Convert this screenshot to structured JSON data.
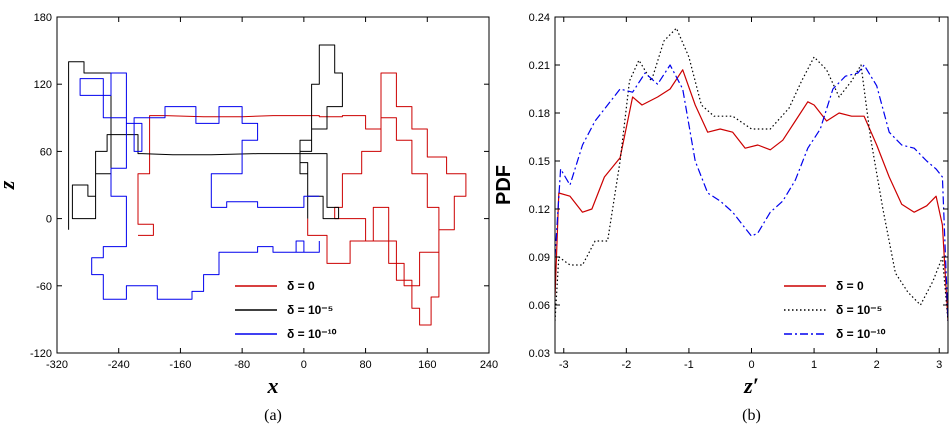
{
  "chart_data": [
    {
      "type": "line",
      "panel_label": "(a)",
      "xlabel": "x",
      "ylabel": "z",
      "xlim": [
        -320,
        240
      ],
      "ylim": [
        -120,
        180
      ],
      "xticks": [
        "-320",
        "-240",
        "-160",
        "-80",
        "0",
        "80",
        "160",
        "240"
      ],
      "yticks": [
        "-120",
        "-60",
        "0",
        "60",
        "120",
        "180"
      ],
      "grid": false,
      "legend_position": "bottom-right",
      "series": [
        {
          "name": "δ = 0",
          "color": "#cc0000",
          "style": "solid",
          "x": [
            5,
            5,
            30,
            30,
            60,
            60,
            90,
            90,
            110,
            110,
            130,
            130,
            150,
            150,
            175,
            175,
            195,
            195,
            210,
            210,
            185,
            185,
            160,
            160,
            140,
            140,
            120,
            120,
            100,
            100,
            75,
            75,
            50,
            50,
            40,
            40,
            80,
            80,
            120,
            120,
            140,
            140,
            150,
            150,
            165,
            165,
            175,
            175,
            160,
            160,
            140,
            140,
            120,
            120,
            100,
            100,
            80,
            80,
            50,
            50,
            20,
            20,
            -40,
            -80,
            -130,
            -180,
            -200,
            -200,
            -215,
            -215,
            -195,
            -195,
            -215
          ],
          "y": [
            0,
            -15,
            -15,
            -40,
            -40,
            -20,
            -20,
            10,
            10,
            -40,
            -40,
            -60,
            -60,
            -30,
            -30,
            -10,
            -10,
            20,
            20,
            40,
            40,
            55,
            55,
            80,
            80,
            100,
            100,
            130,
            130,
            60,
            60,
            40,
            40,
            10,
            10,
            0,
            0,
            -20,
            -20,
            -55,
            -55,
            -80,
            -80,
            -95,
            -95,
            -70,
            -70,
            10,
            10,
            40,
            40,
            70,
            70,
            90,
            90,
            80,
            80,
            92,
            92,
            91,
            91,
            92,
            92,
            91,
            91,
            92,
            92,
            40,
            40,
            -5,
            -5,
            -15,
            -15
          ]
        },
        {
          "name": "δ = 10⁻⁵",
          "color": "#000000",
          "style": "solid",
          "x": [
            5,
            5,
            -5,
            -5,
            10,
            10,
            20,
            20,
            40,
            40,
            50,
            50,
            30,
            30,
            10,
            10,
            -5,
            -5,
            5,
            5,
            25,
            25,
            45,
            45,
            30,
            30,
            -60,
            -120,
            -170,
            -210,
            -215,
            -215,
            -255,
            -255,
            -270,
            -270,
            -280,
            -280,
            -300,
            -300,
            -270,
            -270,
            -250,
            -250,
            -285,
            -285,
            -305,
            -305
          ],
          "y": [
            0,
            40,
            40,
            60,
            60,
            120,
            120,
            155,
            155,
            130,
            130,
            100,
            100,
            80,
            80,
            70,
            70,
            50,
            50,
            20,
            20,
            0,
            0,
            10,
            10,
            58,
            58,
            57,
            57,
            58,
            58,
            75,
            75,
            60,
            60,
            20,
            20,
            30,
            30,
            0,
            0,
            40,
            40,
            130,
            130,
            140,
            140,
            -10
          ]
        },
        {
          "name": "δ = 10⁻¹⁰",
          "color": "#0000ee",
          "style": "solid",
          "x": [
            20,
            20,
            -10,
            -10,
            0,
            0,
            -40,
            -40,
            -60,
            -60,
            -110,
            -110,
            -130,
            -130,
            -145,
            -145,
            -190,
            -190,
            -230,
            -230,
            -260,
            -260,
            -275,
            -275,
            -260,
            -260,
            -230,
            -230,
            -250,
            -250,
            -230,
            -230,
            -260,
            -260,
            -290,
            -290,
            -250,
            -250,
            -230,
            -230,
            -210,
            -210,
            -220,
            -220,
            -180,
            -180,
            -140,
            -140,
            -110,
            -110,
            -80,
            -80,
            -60,
            -60,
            -80,
            -80,
            -120,
            -120,
            -100,
            -100,
            -60,
            -60,
            0,
            0,
            20
          ],
          "y": [
            -20,
            -30,
            -30,
            -20,
            -20,
            -30,
            -30,
            -25,
            -25,
            -30,
            -30,
            -50,
            -50,
            -65,
            -65,
            -72,
            -72,
            -60,
            -60,
            -72,
            -72,
            -50,
            -50,
            -35,
            -35,
            -25,
            -25,
            20,
            20,
            45,
            45,
            90,
            90,
            125,
            125,
            110,
            110,
            130,
            130,
            85,
            85,
            60,
            60,
            90,
            90,
            100,
            100,
            85,
            85,
            100,
            100,
            85,
            85,
            70,
            70,
            40,
            40,
            10,
            10,
            15,
            15,
            10,
            10,
            20,
            20
          ]
        }
      ]
    },
    {
      "type": "line",
      "panel_label": "(b)",
      "xlabel": "z′",
      "ylabel": "PDF",
      "xlim": [
        -3.14,
        3.14
      ],
      "ylim": [
        0.03,
        0.24
      ],
      "xticks": [
        "-3",
        "-2",
        "-1",
        "0",
        "1",
        "2",
        "3"
      ],
      "yticks": [
        "0.03",
        "0.06",
        "0.09",
        "0.12",
        "0.15",
        "0.18",
        "0.21",
        "0.24"
      ],
      "grid": false,
      "legend_position": "bottom-right",
      "series": [
        {
          "name": "δ = 0",
          "color": "#cc0000",
          "style": "solid",
          "x": [
            -3.14,
            -3.08,
            -2.9,
            -2.7,
            -2.55,
            -2.35,
            -2.1,
            -1.9,
            -1.75,
            -1.5,
            -1.3,
            -1.1,
            -0.9,
            -0.7,
            -0.5,
            -0.3,
            -0.1,
            0.1,
            0.3,
            0.5,
            0.7,
            0.9,
            1.0,
            1.2,
            1.4,
            1.6,
            1.8,
            2.0,
            2.2,
            2.4,
            2.6,
            2.8,
            2.95,
            3.05,
            3.14
          ],
          "y": [
            0.065,
            0.13,
            0.128,
            0.118,
            0.12,
            0.14,
            0.152,
            0.19,
            0.185,
            0.19,
            0.195,
            0.207,
            0.185,
            0.168,
            0.17,
            0.168,
            0.158,
            0.16,
            0.157,
            0.163,
            0.175,
            0.187,
            0.185,
            0.175,
            0.18,
            0.178,
            0.178,
            0.16,
            0.14,
            0.123,
            0.118,
            0.122,
            0.128,
            0.11,
            0.05
          ]
        },
        {
          "name": "δ = 10⁻⁵",
          "color": "#000000",
          "style": "dotted",
          "x": [
            -3.14,
            -3.08,
            -2.9,
            -2.7,
            -2.5,
            -2.3,
            -2.1,
            -1.95,
            -1.8,
            -1.6,
            -1.4,
            -1.2,
            -1.0,
            -0.8,
            -0.6,
            -0.3,
            0.0,
            0.3,
            0.6,
            0.8,
            1.0,
            1.2,
            1.4,
            1.6,
            1.75,
            1.9,
            2.1,
            2.3,
            2.5,
            2.7,
            2.9,
            3.05,
            3.14
          ],
          "y": [
            0.05,
            0.09,
            0.085,
            0.085,
            0.1,
            0.1,
            0.15,
            0.2,
            0.213,
            0.2,
            0.225,
            0.233,
            0.215,
            0.185,
            0.178,
            0.178,
            0.17,
            0.17,
            0.183,
            0.2,
            0.215,
            0.207,
            0.19,
            0.2,
            0.21,
            0.165,
            0.12,
            0.08,
            0.068,
            0.06,
            0.075,
            0.09,
            0.05
          ]
        },
        {
          "name": "δ = 10⁻¹⁰",
          "color": "#0000ee",
          "style": "dashdot",
          "x": [
            -3.14,
            -3.05,
            -2.9,
            -2.7,
            -2.5,
            -2.3,
            -2.1,
            -1.9,
            -1.7,
            -1.5,
            -1.3,
            -1.1,
            -0.9,
            -0.7,
            -0.5,
            -0.3,
            -0.1,
            0.0,
            0.1,
            0.3,
            0.5,
            0.7,
            0.9,
            1.1,
            1.3,
            1.5,
            1.7,
            1.8,
            2.0,
            2.2,
            2.4,
            2.6,
            2.8,
            2.95,
            3.05,
            3.14
          ],
          "y": [
            0.09,
            0.145,
            0.135,
            0.16,
            0.175,
            0.185,
            0.195,
            0.193,
            0.205,
            0.198,
            0.21,
            0.195,
            0.15,
            0.13,
            0.125,
            0.118,
            0.108,
            0.103,
            0.105,
            0.118,
            0.125,
            0.138,
            0.158,
            0.17,
            0.195,
            0.203,
            0.205,
            0.21,
            0.197,
            0.168,
            0.16,
            0.158,
            0.15,
            0.145,
            0.14,
            0.05
          ]
        }
      ]
    }
  ]
}
